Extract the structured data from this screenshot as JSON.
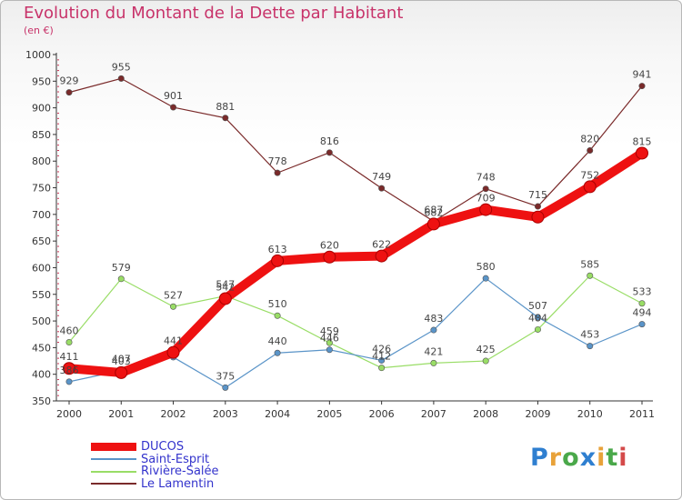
{
  "header": {
    "title": "Evolution du Montant de la Dette par Habitant",
    "unit": "(en €)"
  },
  "logo": {
    "text": "Proxiti",
    "colors": [
      "#2f7fd0",
      "#e8a23a",
      "#4aa84a",
      "#2f7fd0",
      "#e8a23a",
      "#4aa84a",
      "#d44a4a"
    ]
  },
  "chart_data": {
    "type": "line",
    "title": "Evolution du Montant de la Dette par Habitant",
    "ylabel": "(en €)",
    "xlabel": "",
    "ylim": [
      350,
      1000
    ],
    "yticks": [
      350,
      400,
      450,
      500,
      550,
      600,
      650,
      700,
      750,
      800,
      850,
      900,
      950,
      1000
    ],
    "grid": false,
    "legend_position": "bottom-left",
    "categories": [
      "2000",
      "2001",
      "2002",
      "2003",
      "2004",
      "2005",
      "2006",
      "2007",
      "2008",
      "2009",
      "2010",
      "2011"
    ],
    "series": [
      {
        "name": "DUCOS",
        "color": "#ee1111",
        "width": 10,
        "values": [
          411,
          403,
          441,
          542,
          613,
          620,
          622,
          682,
          709,
          695,
          752,
          815
        ],
        "labels": [
          "411",
          "403",
          "441",
          "542",
          "613",
          "620",
          "622",
          "682",
          "709",
          "",
          "752",
          "815"
        ]
      },
      {
        "name": "Saint-Esprit",
        "color": "#5a94c8",
        "width": 1.2,
        "values": [
          386,
          407,
          432,
          375,
          440,
          446,
          426,
          483,
          580,
          507,
          453,
          494
        ],
        "labels": [
          "386",
          "407",
          "",
          "375",
          "440",
          "446",
          "426",
          "483",
          "580",
          "507",
          "453",
          "494"
        ]
      },
      {
        "name": "Rivière-Salée",
        "color": "#99dd66",
        "width": 1.2,
        "values": [
          460,
          579,
          527,
          547,
          510,
          459,
          412,
          421,
          425,
          484,
          585,
          533
        ],
        "labels": [
          "460",
          "579",
          "527",
          "547",
          "510",
          "459",
          "412",
          "421",
          "425",
          "484",
          "585",
          "533"
        ]
      },
      {
        "name": "Le Lamentin",
        "color": "#7a2a2a",
        "width": 1.2,
        "values": [
          929,
          955,
          901,
          881,
          778,
          816,
          749,
          687,
          748,
          715,
          820,
          941
        ],
        "labels": [
          "929",
          "955",
          "901",
          "881",
          "778",
          "816",
          "749",
          "687",
          "748",
          "715",
          "820",
          "941"
        ]
      }
    ]
  }
}
